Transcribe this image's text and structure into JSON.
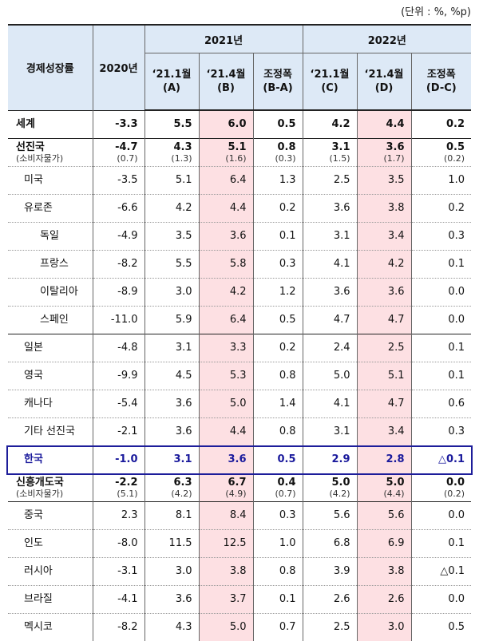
{
  "unit_note": "(단위 : %, %p)",
  "header": {
    "col_name": "경제성장률",
    "col_2020": "2020년",
    "year_2021": "2021년",
    "year_2022": "2022년",
    "sub": [
      {
        "l1": "‘21.1월",
        "l2": "(A)"
      },
      {
        "l1": "‘21.4월",
        "l2": "(B)"
      },
      {
        "l1": "조정폭",
        "l2": "(B-A)"
      },
      {
        "l1": "‘21.1월",
        "l2": "(C)"
      },
      {
        "l1": "‘21.4월",
        "l2": "(D)"
      },
      {
        "l1": "조정폭",
        "l2": "(D-C)"
      }
    ]
  },
  "rows": [
    {
      "name": "세계",
      "v": [
        "-3.3",
        "5.5",
        "6.0",
        "0.5",
        "4.2",
        "4.4",
        "0.2"
      ]
    },
    {
      "name": "선진국",
      "subname": "(소비자물가)",
      "v": [
        "-4.7",
        "4.3",
        "5.1",
        "0.8",
        "3.1",
        "3.6",
        "0.5"
      ],
      "s": [
        "(0.7)",
        "(1.3)",
        "(1.6)",
        "(0.3)",
        "(1.5)",
        "(1.7)",
        "(0.2)"
      ]
    },
    {
      "name": "미국",
      "v": [
        "-3.5",
        "5.1",
        "6.4",
        "1.3",
        "2.5",
        "3.5",
        "1.0"
      ]
    },
    {
      "name": "유로존",
      "v": [
        "-6.6",
        "4.2",
        "4.4",
        "0.2",
        "3.6",
        "3.8",
        "0.2"
      ]
    },
    {
      "name": "독일",
      "v": [
        "-4.9",
        "3.5",
        "3.6",
        "0.1",
        "3.1",
        "3.4",
        "0.3"
      ]
    },
    {
      "name": "프랑스",
      "v": [
        "-8.2",
        "5.5",
        "5.8",
        "0.3",
        "4.1",
        "4.2",
        "0.1"
      ]
    },
    {
      "name": "이탈리아",
      "v": [
        "-8.9",
        "3.0",
        "4.2",
        "1.2",
        "3.6",
        "3.6",
        "0.0"
      ]
    },
    {
      "name": "스페인",
      "v": [
        "-11.0",
        "5.9",
        "6.4",
        "0.5",
        "4.7",
        "4.7",
        "0.0"
      ]
    },
    {
      "name": "일본",
      "v": [
        "-4.8",
        "3.1",
        "3.3",
        "0.2",
        "2.4",
        "2.5",
        "0.1"
      ]
    },
    {
      "name": "영국",
      "v": [
        "-9.9",
        "4.5",
        "5.3",
        "0.8",
        "5.0",
        "5.1",
        "0.1"
      ]
    },
    {
      "name": "캐나다",
      "v": [
        "-5.4",
        "3.6",
        "5.0",
        "1.4",
        "4.1",
        "4.7",
        "0.6"
      ]
    },
    {
      "name": "기타 선진국",
      "v": [
        "-2.1",
        "3.6",
        "4.4",
        "0.8",
        "3.1",
        "3.4",
        "0.3"
      ]
    },
    {
      "name": "한국",
      "v": [
        "-1.0",
        "3.1",
        "3.6",
        "0.5",
        "2.9",
        "2.8",
        "△0.1"
      ]
    },
    {
      "name": "신흥개도국",
      "subname": "(소비자물가)",
      "v": [
        "-2.2",
        "6.3",
        "6.7",
        "0.4",
        "5.0",
        "5.0",
        "0.0"
      ],
      "s": [
        "(5.1)",
        "(4.2)",
        "(4.9)",
        "(0.7)",
        "(4.2)",
        "(4.4)",
        "(0.2)"
      ]
    },
    {
      "name": "중국",
      "v": [
        "2.3",
        "8.1",
        "8.4",
        "0.3",
        "5.6",
        "5.6",
        "0.0"
      ]
    },
    {
      "name": "인도",
      "v": [
        "-8.0",
        "11.5",
        "12.5",
        "1.0",
        "6.8",
        "6.9",
        "0.1"
      ]
    },
    {
      "name": "러시아",
      "v": [
        "-3.1",
        "3.0",
        "3.8",
        "0.8",
        "3.9",
        "3.8",
        "△0.1"
      ]
    },
    {
      "name": "브라질",
      "v": [
        "-4.1",
        "3.6",
        "3.7",
        "0.1",
        "2.6",
        "2.6",
        "0.0"
      ]
    },
    {
      "name": "멕시코",
      "v": [
        "-8.2",
        "4.3",
        "5.0",
        "0.7",
        "2.5",
        "3.0",
        "0.5"
      ]
    }
  ]
}
